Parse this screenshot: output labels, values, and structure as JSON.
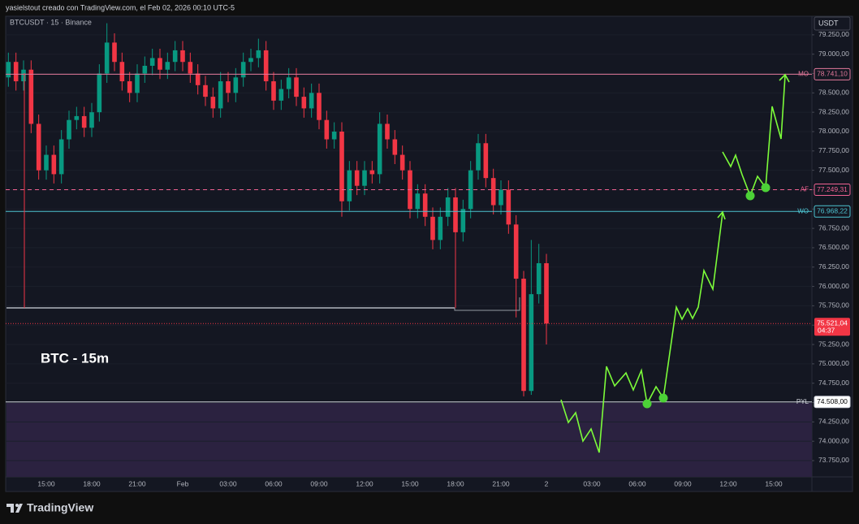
{
  "header": {
    "caption": "yasielstout creado con TradingView.com, el Feb 02, 2026 00:10 UTC-5",
    "symbol": "BTCUSDT · 15 · Binance",
    "currency": "USDT",
    "annotation": "BTC - 15m",
    "brand": "TradingView"
  },
  "chart_data": {
    "type": "candlestick",
    "categories": [
      null,
      null,
      null,
      null,
      null,
      "15:00",
      null,
      null,
      null,
      null,
      null,
      "18:00",
      null,
      null,
      null,
      null,
      null,
      "21:00",
      null,
      null,
      null,
      null,
      null,
      "Feb",
      null,
      null,
      null,
      null,
      null,
      "03:00",
      null,
      null,
      null,
      null,
      null,
      "06:00",
      null,
      null,
      null,
      null,
      null,
      "09:00",
      null,
      null,
      null,
      null,
      null,
      "12:00",
      null,
      null,
      null,
      null,
      null,
      "15:00",
      null,
      null,
      null,
      null,
      null,
      "18:00",
      null,
      null,
      null,
      null,
      null,
      "21:00",
      null,
      null,
      null,
      null,
      null,
      "2"
    ],
    "future_categories": [
      "03:00",
      "06:00",
      "09:00",
      "12:00",
      "15:00"
    ],
    "open": [
      78700,
      78900,
      78650,
      78800,
      78100,
      77500,
      77700,
      77450,
      77900,
      78150,
      78200,
      78050,
      78250,
      78750,
      79150,
      78900,
      78650,
      78500,
      78750,
      78850,
      78950,
      78800,
      78900,
      79050,
      78900,
      78750,
      78600,
      78450,
      78300,
      78650,
      78500,
      78700,
      78900,
      78950,
      79050,
      78650,
      78400,
      78550,
      78700,
      78450,
      78300,
      78500,
      78150,
      77900,
      78000,
      77100,
      77500,
      77300,
      77500,
      77450,
      78100,
      77900,
      77700,
      77500,
      77000,
      77200,
      76900,
      76600,
      76900,
      77150,
      76700,
      77000,
      77500,
      77850,
      77400,
      77050,
      77250,
      76800,
      76100,
      74650,
      75900,
      76300
    ],
    "high": [
      79020,
      79020,
      78920,
      78920,
      78220,
      77820,
      77820,
      78020,
      78270,
      78320,
      78320,
      78370,
      78870,
      79400,
      79270,
      79020,
      78770,
      78870,
      78970,
      79070,
      79070,
      79020,
      79170,
      79170,
      79020,
      78870,
      78720,
      78570,
      78770,
      78770,
      78820,
      79020,
      79070,
      79200,
      79170,
      78770,
      78670,
      78820,
      78820,
      78570,
      78620,
      78620,
      78270,
      78120,
      78120,
      77620,
      77620,
      77620,
      77620,
      78250,
      78220,
      78020,
      77820,
      77620,
      77320,
      77320,
      77020,
      77020,
      77270,
      77270,
      77120,
      77620,
      77970,
      77970,
      77520,
      77370,
      77370,
      76920,
      76200,
      76600,
      76550,
      76420
    ],
    "low": [
      78580,
      78530,
      78530,
      77980,
      77380,
      77380,
      77330,
      77330,
      77780,
      78030,
      77930,
      77930,
      78130,
      78630,
      78780,
      78530,
      78380,
      78380,
      78630,
      78730,
      78680,
      78680,
      78780,
      78780,
      78630,
      78480,
      78330,
      78180,
      78180,
      78380,
      78380,
      78580,
      78780,
      78830,
      78530,
      78280,
      78280,
      78430,
      78330,
      78180,
      78180,
      78030,
      77780,
      77780,
      76900,
      76980,
      77180,
      77180,
      77330,
      77330,
      77780,
      77580,
      77380,
      76880,
      76880,
      76780,
      76480,
      76480,
      76780,
      75720,
      76580,
      76880,
      77380,
      77280,
      76930,
      76930,
      76680,
      75600,
      74580,
      74600,
      75780,
      75250
    ],
    "close": [
      78900,
      78650,
      78800,
      78100,
      77500,
      77700,
      77450,
      77900,
      78150,
      78200,
      78050,
      78250,
      78750,
      79150,
      78900,
      78650,
      78500,
      78750,
      78850,
      78950,
      78800,
      78900,
      79050,
      78900,
      78750,
      78600,
      78450,
      78300,
      78650,
      78500,
      78700,
      78900,
      78950,
      79050,
      78650,
      78400,
      78550,
      78700,
      78450,
      78300,
      78500,
      78150,
      77900,
      78000,
      77100,
      77500,
      77300,
      77500,
      77450,
      78100,
      77900,
      77700,
      77500,
      77000,
      77200,
      76900,
      76600,
      76900,
      77150,
      76700,
      77000,
      77500,
      77850,
      77400,
      77050,
      77250,
      76800,
      76100,
      74650,
      75900,
      76300,
      75521.04
    ],
    "up_color": "#089981",
    "down_color": "#f23645",
    "ylim": [
      73540,
      79490
    ],
    "yticks": [
      {
        "value": 73750,
        "label": "73.750,00"
      },
      {
        "value": 74000,
        "label": "74.000,00"
      },
      {
        "value": 74250,
        "label": "74.250,00"
      },
      {
        "value": 74500,
        "label": "74.500,00"
      },
      {
        "value": 74750,
        "label": "74.750,00"
      },
      {
        "value": 75000,
        "label": "75.000,00"
      },
      {
        "value": 75250,
        "label": "75.250,00"
      },
      {
        "value": 75500,
        "label": "75.500,00"
      },
      {
        "value": 75750,
        "label": "75.750,00"
      },
      {
        "value": 76000,
        "label": "76.000,00"
      },
      {
        "value": 76250,
        "label": "76.250,00"
      },
      {
        "value": 76500,
        "label": "76.500,00"
      },
      {
        "value": 76750,
        "label": "76.750,00"
      },
      {
        "value": 77000,
        "label": "77.000,00"
      },
      {
        "value": 77250,
        "label": "77.250,00"
      },
      {
        "value": 77500,
        "label": "77.500,00"
      },
      {
        "value": 77750,
        "label": "77.750,00"
      },
      {
        "value": 78000,
        "label": "78.000,00"
      },
      {
        "value": 78250,
        "label": "78.250,00"
      },
      {
        "value": 78500,
        "label": "78.500,00"
      },
      {
        "value": 78750,
        "label": "78.750,00"
      },
      {
        "value": 79000,
        "label": "79.000,00"
      },
      {
        "value": 79250,
        "label": "79.250,00"
      }
    ],
    "grid": true,
    "levels": [
      {
        "name": "MO",
        "value": 78741.1,
        "label": "78.741,10",
        "color": "#e2789a",
        "style": "solid"
      },
      {
        "name": "AF",
        "value": 77249.31,
        "label": "77.249,31",
        "color": "#f06292",
        "style": "dashed"
      },
      {
        "name": "WO",
        "value": 76968.22,
        "label": "76.968,22",
        "color": "#4dc3d0",
        "style": "solid"
      },
      {
        "name": "PYL",
        "value": 74508,
        "label": "74.508,00",
        "color": "#d1d4dc",
        "style": "solid"
      }
    ],
    "last_price": {
      "value": 75521.04,
      "label": "75.521,04",
      "countdown": "04:37",
      "color": "#f23645"
    }
  }
}
